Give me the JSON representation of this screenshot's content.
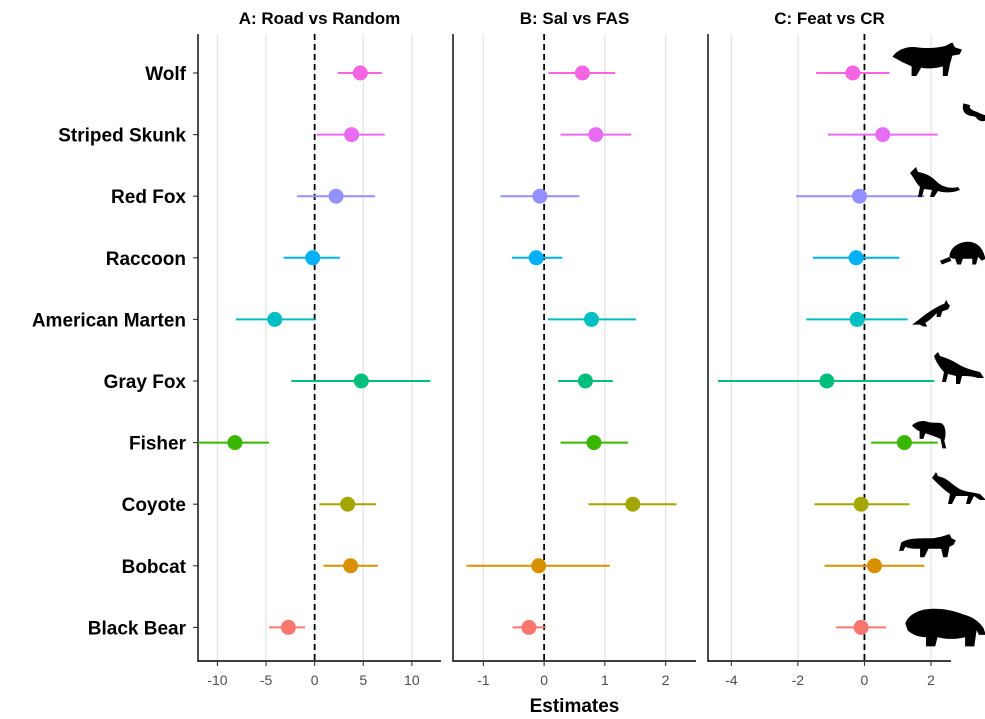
{
  "chart_data": {
    "type": "scatter",
    "xlabel": "Estimates",
    "ylabel": "",
    "grid": "vertical major lines only",
    "legend": "none",
    "reference_line": {
      "x": 0,
      "style": "dashed",
      "color": "#000000"
    },
    "categories": [
      "Wolf",
      "Striped Skunk",
      "Red Fox",
      "Raccoon",
      "American Marten",
      "Gray Fox",
      "Fisher",
      "Coyote",
      "Bobcat",
      "Black Bear"
    ],
    "colors": [
      "#F564E3",
      "#E76BF3",
      "#9590FF",
      "#00B0F6",
      "#00BFC4",
      "#00BF7D",
      "#39B600",
      "#A3A500",
      "#D89000",
      "#F8766D"
    ],
    "silhouette_icons": [
      "wolf-icon",
      "striped-skunk-icon",
      "red-fox-icon",
      "raccoon-icon",
      "american-marten-icon",
      "gray-fox-icon",
      "fisher-icon",
      "coyote-icon",
      "bobcat-icon",
      "black-bear-icon"
    ],
    "panels": [
      {
        "title": "A: Road vs Random",
        "xlim": [
          -12,
          13
        ],
        "ticks": [
          -10,
          -5,
          0,
          5,
          10
        ],
        "estimates": [
          4.7,
          3.8,
          2.2,
          -0.2,
          -4.1,
          4.8,
          -8.2,
          3.4,
          3.7,
          -2.7
        ],
        "lower": [
          2.4,
          0.2,
          -1.8,
          -3.2,
          -8.1,
          -2.4,
          -12.0,
          0.5,
          0.9,
          -4.7
        ],
        "upper": [
          6.9,
          7.2,
          6.2,
          2.6,
          0.0,
          11.9,
          -4.7,
          6.3,
          6.5,
          -1.0
        ]
      },
      {
        "title": "B: Sal vs FAS",
        "xlim": [
          -1.5,
          2.5
        ],
        "ticks": [
          -1,
          0,
          1,
          2
        ],
        "estimates": [
          0.63,
          0.85,
          -0.07,
          -0.13,
          0.78,
          0.68,
          0.82,
          1.46,
          -0.09,
          -0.25
        ],
        "lower": [
          0.07,
          0.27,
          -0.72,
          -0.53,
          0.06,
          0.23,
          0.27,
          0.73,
          -1.28,
          -0.52
        ],
        "upper": [
          1.17,
          1.43,
          0.58,
          0.3,
          1.51,
          1.13,
          1.38,
          2.18,
          1.08,
          0.03
        ]
      },
      {
        "title": "C: Feat vs CR",
        "xlim": [
          -4.7,
          2.6
        ],
        "ticks": [
          -4,
          -2,
          0,
          2
        ],
        "estimates": [
          -0.35,
          0.55,
          -0.15,
          -0.25,
          -0.22,
          -1.13,
          1.2,
          -0.1,
          0.3,
          -0.1
        ],
        "lower": [
          -1.45,
          -1.1,
          -2.05,
          -1.55,
          -1.75,
          -4.4,
          0.2,
          -1.5,
          -1.2,
          -0.85
        ],
        "upper": [
          0.75,
          2.2,
          1.8,
          1.05,
          1.3,
          2.1,
          2.2,
          1.35,
          1.8,
          0.65
        ]
      }
    ]
  }
}
